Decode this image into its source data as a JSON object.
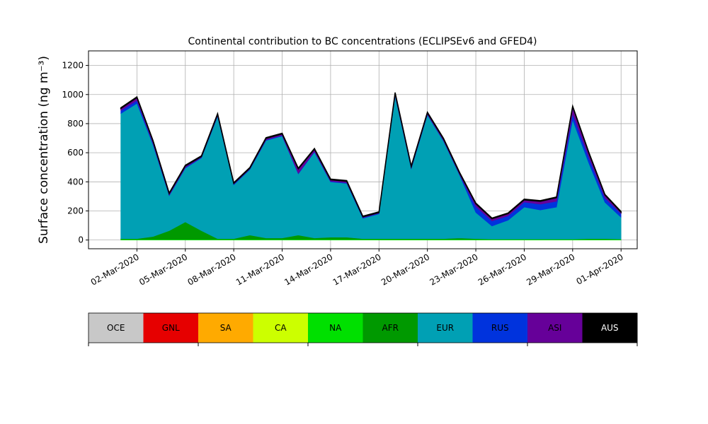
{
  "chart_data": {
    "type": "stacked_area",
    "title": "Continental contribution to BC concentrations (ECLIPSEv6 and GFED4)",
    "ylabel": "Surface concentration (ng m⁻³)",
    "x": [
      "2020-03-01",
      "2020-03-02",
      "2020-03-03",
      "2020-03-04",
      "2020-03-05",
      "2020-03-06",
      "2020-03-07",
      "2020-03-08",
      "2020-03-09",
      "2020-03-10",
      "2020-03-11",
      "2020-03-12",
      "2020-03-13",
      "2020-03-14",
      "2020-03-15",
      "2020-03-16",
      "2020-03-17",
      "2020-03-18",
      "2020-03-19",
      "2020-03-20",
      "2020-03-21",
      "2020-03-22",
      "2020-03-23",
      "2020-03-24",
      "2020-03-25",
      "2020-03-26",
      "2020-03-27",
      "2020-03-28",
      "2020-03-29",
      "2020-03-30",
      "2020-03-31",
      "2020-04-01"
    ],
    "xlim": [
      "2020-02-28",
      "2020-04-02"
    ],
    "xticks": [
      {
        "value": "2020-03-02",
        "label": "02-Mar-2020"
      },
      {
        "value": "2020-03-05",
        "label": "05-Mar-2020"
      },
      {
        "value": "2020-03-08",
        "label": "08-Mar-2020"
      },
      {
        "value": "2020-03-11",
        "label": "11-Mar-2020"
      },
      {
        "value": "2020-03-14",
        "label": "14-Mar-2020"
      },
      {
        "value": "2020-03-17",
        "label": "17-Mar-2020"
      },
      {
        "value": "2020-03-20",
        "label": "20-Mar-2020"
      },
      {
        "value": "2020-03-23",
        "label": "23-Mar-2020"
      },
      {
        "value": "2020-03-26",
        "label": "26-Mar-2020"
      },
      {
        "value": "2020-03-29",
        "label": "29-Mar-2020"
      },
      {
        "value": "2020-04-01",
        "label": "01-Apr-2020"
      }
    ],
    "ylim": [
      -60,
      1300
    ],
    "yticks": [
      0,
      200,
      400,
      600,
      800,
      1000,
      1200
    ],
    "grid": true,
    "series": [
      {
        "name": "OCE",
        "color": "#c8c8c8",
        "values": [
          0,
          0,
          0,
          0,
          0,
          0,
          0,
          0,
          0,
          0,
          0,
          0,
          0,
          0,
          0,
          0,
          0,
          0,
          0,
          0,
          0,
          0,
          0,
          0,
          0,
          0,
          0,
          0,
          0,
          0,
          0,
          0
        ]
      },
      {
        "name": "GNL",
        "color": "#e60000",
        "values": [
          0,
          0,
          0,
          0,
          0,
          0,
          0,
          0,
          0,
          0,
          0,
          0,
          0,
          0,
          0,
          0,
          0,
          0,
          0,
          0,
          0,
          0,
          0,
          0,
          0,
          0,
          0,
          0,
          0,
          0,
          0,
          0
        ]
      },
      {
        "name": "SA",
        "color": "#ffaa00",
        "values": [
          0,
          0,
          0,
          0,
          0,
          0,
          0,
          0,
          0,
          0,
          0,
          0,
          0,
          0,
          0,
          0,
          0,
          0,
          0,
          0,
          0,
          0,
          0,
          0,
          0,
          0,
          0,
          0,
          0,
          0,
          0,
          0
        ]
      },
      {
        "name": "CA",
        "color": "#ccff00",
        "values": [
          0,
          0,
          0,
          0,
          0,
          0,
          0,
          0,
          0,
          0,
          0,
          0,
          0,
          0,
          0,
          0,
          0,
          0,
          0,
          0,
          0,
          0,
          0,
          0,
          0,
          0,
          0,
          0,
          0,
          0,
          0,
          0
        ]
      },
      {
        "name": "NA",
        "color": "#00e000",
        "values": [
          4,
          4,
          4,
          4,
          4,
          4,
          4,
          4,
          4,
          4,
          4,
          4,
          4,
          4,
          4,
          4,
          4,
          4,
          4,
          4,
          4,
          4,
          4,
          4,
          4,
          4,
          4,
          4,
          4,
          4,
          4,
          4
        ]
      },
      {
        "name": "AFR",
        "color": "#009900",
        "values": [
          5,
          5,
          20,
          60,
          120,
          60,
          5,
          5,
          30,
          10,
          10,
          30,
          10,
          15,
          15,
          5,
          5,
          5,
          5,
          5,
          5,
          10,
          5,
          2,
          2,
          2,
          2,
          2,
          2,
          5,
          5,
          2
        ]
      },
      {
        "name": "EUR",
        "color": "#00a0b4",
        "values": [
          860,
          930,
          630,
          240,
          370,
          500,
          840,
          370,
          450,
          670,
          700,
          420,
          590,
          380,
          370,
          140,
          170,
          980,
          480,
          850,
          670,
          430,
          180,
          90,
          130,
          220,
          200,
          220,
          820,
          520,
          250,
          150
        ]
      },
      {
        "name": "RUS",
        "color": "#0033dd",
        "values": [
          20,
          20,
          10,
          5,
          5,
          5,
          5,
          5,
          5,
          5,
          5,
          5,
          5,
          5,
          5,
          5,
          5,
          5,
          5,
          5,
          5,
          5,
          40,
          35,
          30,
          35,
          40,
          40,
          40,
          40,
          30,
          25
        ]
      },
      {
        "name": "ASI",
        "color": "#660099",
        "values": [
          15,
          20,
          15,
          10,
          10,
          5,
          10,
          5,
          5,
          10,
          10,
          30,
          15,
          10,
          10,
          5,
          5,
          15,
          10,
          10,
          10,
          10,
          20,
          15,
          15,
          15,
          20,
          25,
          50,
          30,
          20,
          10
        ]
      },
      {
        "name": "AUS",
        "color": "#000000",
        "values": [
          5,
          5,
          5,
          5,
          5,
          5,
          5,
          5,
          5,
          5,
          5,
          5,
          5,
          5,
          5,
          5,
          5,
          5,
          5,
          5,
          5,
          5,
          5,
          5,
          5,
          5,
          5,
          5,
          5,
          5,
          5,
          5
        ]
      }
    ]
  }
}
